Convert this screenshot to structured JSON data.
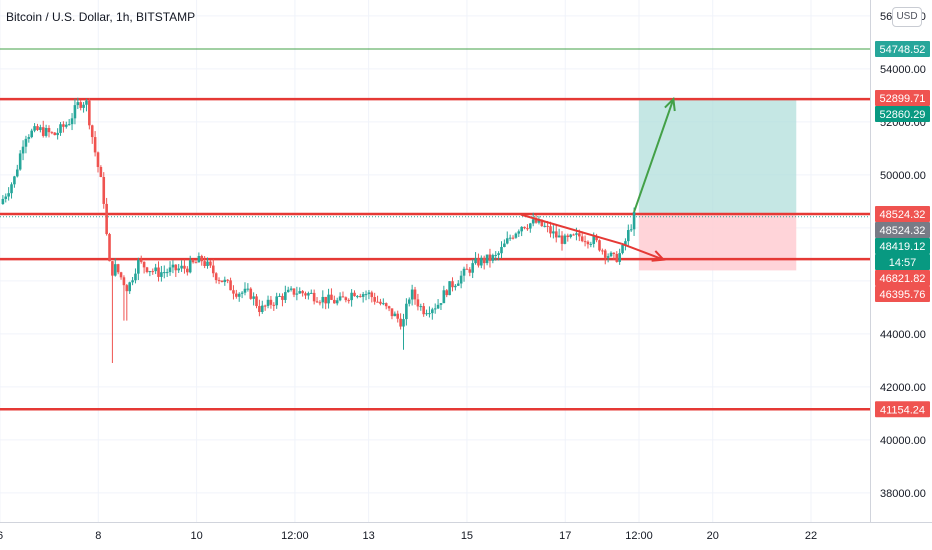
{
  "header": {
    "title": "Bitcoin / U.S. Dollar, 1h, BITSTAMP",
    "currency_button": "USD"
  },
  "colors": {
    "up": "#26a69a",
    "down": "#ef5350",
    "level_line": "#e53935",
    "target_line": "#43a047",
    "profit_zone": "#b2dfdb",
    "loss_zone": "#ffcdd2"
  },
  "chart_data": {
    "type": "candlestick",
    "title": "Bitcoin / U.S. Dollar, 1h, BITSTAMP",
    "ylim": [
      36900,
      56600
    ],
    "y_ticks": [
      "56000.00",
      "54000.00",
      "52000.00",
      "50000.00",
      "48000.00",
      "46000.00",
      "44000.00",
      "42000.00",
      "40000.00",
      "38000.00"
    ],
    "y_tick_values": [
      56000,
      54000,
      52000,
      50000,
      48000,
      46000,
      44000,
      42000,
      40000,
      38000
    ],
    "x_ticks": [
      "6",
      "8",
      "10",
      "12:00",
      "13",
      "15",
      "17",
      "12:00",
      "20",
      "22"
    ],
    "x_tick_values": [
      5.5,
      7.5,
      9.5,
      11.5,
      13.0,
      15.0,
      17.0,
      18.5,
      20.0,
      22.0
    ],
    "x_range": [
      5.5,
      23.2
    ],
    "price_series": [
      [
        5.5,
        48900
      ],
      [
        5.8,
        49900
      ],
      [
        6.0,
        51500
      ],
      [
        6.3,
        51700
      ],
      [
        6.6,
        51500
      ],
      [
        6.9,
        52000
      ],
      [
        7.1,
        52700
      ],
      [
        7.25,
        52800
      ],
      [
        7.4,
        51200
      ],
      [
        7.6,
        49300
      ],
      [
        7.7,
        47000
      ],
      [
        7.75,
        46300
      ],
      [
        7.85,
        46500
      ],
      [
        8.1,
        45700
      ],
      [
        8.3,
        46700
      ],
      [
        8.7,
        46300
      ],
      [
        9.0,
        46400
      ],
      [
        9.3,
        46500
      ],
      [
        9.6,
        46800
      ],
      [
        9.9,
        46200
      ],
      [
        10.3,
        45600
      ],
      [
        10.6,
        45500
      ],
      [
        10.8,
        44900
      ],
      [
        11.2,
        45400
      ],
      [
        11.5,
        45600
      ],
      [
        11.8,
        45500
      ],
      [
        12.1,
        45300
      ],
      [
        12.4,
        45200
      ],
      [
        12.7,
        45600
      ],
      [
        13.0,
        45500
      ],
      [
        13.2,
        45200
      ],
      [
        13.45,
        44800
      ],
      [
        13.7,
        44400
      ],
      [
        13.85,
        45600
      ],
      [
        14.1,
        44900
      ],
      [
        14.4,
        45100
      ],
      [
        14.6,
        45700
      ],
      [
        14.9,
        46200
      ],
      [
        15.2,
        46700
      ],
      [
        15.6,
        46900
      ],
      [
        15.9,
        47700
      ],
      [
        16.1,
        48100
      ],
      [
        16.4,
        48200
      ],
      [
        16.6,
        48000
      ],
      [
        16.8,
        47700
      ],
      [
        17.0,
        47500
      ],
      [
        17.3,
        47700
      ],
      [
        17.6,
        47500
      ],
      [
        17.8,
        47100
      ],
      [
        18.0,
        46800
      ],
      [
        18.15,
        47100
      ],
      [
        18.3,
        47900
      ],
      [
        18.4,
        48420
      ]
    ],
    "horizontal_levels": [
      {
        "label": "54748.52",
        "value": 54748.52,
        "style": "thin-green"
      },
      {
        "label": "52860.29",
        "value": 52860.29,
        "style": "red"
      },
      {
        "label": "48524.32",
        "value": 48524.32,
        "style": "red"
      },
      {
        "label": "46821.82",
        "value": 46821.82,
        "style": "red"
      },
      {
        "label": "41154.24",
        "value": 41154.24,
        "style": "red"
      }
    ],
    "price_labels": [
      {
        "text": "54748.52",
        "value": 54748.52,
        "color": "#26a69a"
      },
      {
        "text": "52899.71",
        "value": 52899.71,
        "color": "#ef5350"
      },
      {
        "text": "52860.29",
        "value": 52860.29,
        "color": "#089981"
      },
      {
        "text": "48524.32",
        "value": 48524.32,
        "color": "#ef5350"
      },
      {
        "text": "48524.32",
        "value": 48524.32,
        "color": "#787b86"
      },
      {
        "text": "48419.12",
        "value": 48419.12,
        "color": "#089981"
      },
      {
        "text": "14:57",
        "value": 47900,
        "color": "#089981"
      },
      {
        "text": "46821.82",
        "value": 46821.82,
        "color": "#ef5350"
      },
      {
        "text": "46395.76",
        "value": 46395.76,
        "color": "#ef5350"
      },
      {
        "text": "41154.24",
        "value": 41154.24,
        "color": "#ef5350"
      }
    ],
    "long_position": {
      "x_start": 18.5,
      "x_end": 21.7,
      "entry": 48524.32,
      "target": 52860.29,
      "stop": 46395.76
    },
    "trendline": {
      "x1": 16.1,
      "y1": 48500,
      "x2": 18.15,
      "y2": 47400
    },
    "forecast_arrows": [
      {
        "x1": 18.4,
        "y1": 48600,
        "x2": 19.2,
        "y2": 52860,
        "color": "green"
      },
      {
        "x1": 18.15,
        "y1": 47400,
        "x2": 19.0,
        "y2": 46800,
        "color": "red"
      }
    ]
  }
}
